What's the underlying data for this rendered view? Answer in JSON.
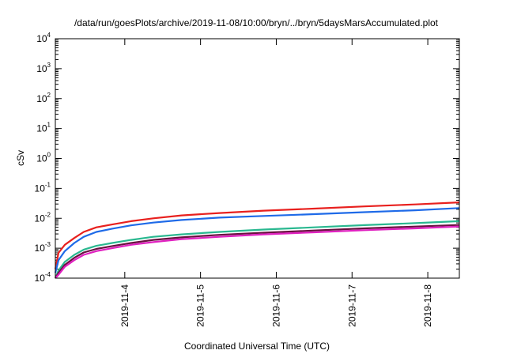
{
  "chart_data": {
    "type": "line",
    "title": "/data/run/goesPlots/archive/2019-11-08/10:00/bryn/../bryn/5daysMarsAccumulated.plot",
    "xlabel": "Coordinated Universal Time (UTC)",
    "ylabel": "cSv",
    "yscale": "log",
    "ylim": [
      0.0001,
      10000
    ],
    "y_ticks": [
      {
        "value": 0.0001,
        "base": "10",
        "exp": "-4"
      },
      {
        "value": 0.001,
        "base": "10",
        "exp": "-3"
      },
      {
        "value": 0.01,
        "base": "10",
        "exp": "-2"
      },
      {
        "value": 0.1,
        "base": "10",
        "exp": "-1"
      },
      {
        "value": 1,
        "base": "10",
        "exp": "0"
      },
      {
        "value": 10,
        "base": "10",
        "exp": "1"
      },
      {
        "value": 100,
        "base": "10",
        "exp": "2"
      },
      {
        "value": 1000,
        "base": "10",
        "exp": "3"
      },
      {
        "value": 10000,
        "base": "10",
        "exp": "4"
      }
    ],
    "xlim": [
      "2019-11-03 02:00",
      "2019-11-08 10:00"
    ],
    "x_ticks": [
      {
        "value": "2019-11-04 00:00",
        "label": "2019-11-4"
      },
      {
        "value": "2019-11-05 00:00",
        "label": "2019-11-5"
      },
      {
        "value": "2019-11-06 00:00",
        "label": "2019-11-6"
      },
      {
        "value": "2019-11-07 00:00",
        "label": "2019-11-7"
      },
      {
        "value": "2019-11-08 00:00",
        "label": "2019-11-8"
      }
    ],
    "grid": false,
    "series": [
      {
        "color": "#e8201e",
        "x": [
          "2019-11-03 02:00",
          "2019-11-03 03:00",
          "2019-11-03 05:00",
          "2019-11-03 08:00",
          "2019-11-03 11:00",
          "2019-11-03 15:00",
          "2019-11-03 20:00",
          "2019-11-04 02:00",
          "2019-11-04 09:00",
          "2019-11-04 18:00",
          "2019-11-05 06:00",
          "2019-11-05 20:00",
          "2019-11-06 12:00",
          "2019-11-07 04:00",
          "2019-11-07 20:00",
          "2019-11-08 10:00"
        ],
        "values": [
          0.0002,
          0.0007,
          0.0013,
          0.0022,
          0.0035,
          0.005,
          0.0062,
          0.008,
          0.01,
          0.0125,
          0.015,
          0.018,
          0.021,
          0.025,
          0.029,
          0.034
        ]
      },
      {
        "color": "#1e6ae8",
        "x": [
          "2019-11-03 02:00",
          "2019-11-03 03:00",
          "2019-11-03 05:00",
          "2019-11-03 08:00",
          "2019-11-03 11:00",
          "2019-11-03 15:00",
          "2019-11-03 20:00",
          "2019-11-04 02:00",
          "2019-11-04 09:00",
          "2019-11-04 18:00",
          "2019-11-05 06:00",
          "2019-11-05 20:00",
          "2019-11-06 12:00",
          "2019-11-07 04:00",
          "2019-11-07 20:00",
          "2019-11-08 10:00"
        ],
        "values": [
          0.00015,
          0.0004,
          0.0008,
          0.0015,
          0.0024,
          0.0035,
          0.0045,
          0.0058,
          0.0072,
          0.0088,
          0.0105,
          0.012,
          0.0138,
          0.016,
          0.0185,
          0.022
        ]
      },
      {
        "color": "#2ab890",
        "x": [
          "2019-11-03 02:00",
          "2019-11-03 03:00",
          "2019-11-03 05:00",
          "2019-11-03 08:00",
          "2019-11-03 11:00",
          "2019-11-03 15:00",
          "2019-11-03 20:00",
          "2019-11-04 02:00",
          "2019-11-04 09:00",
          "2019-11-04 18:00",
          "2019-11-05 06:00",
          "2019-11-05 20:00",
          "2019-11-06 12:00",
          "2019-11-07 04:00",
          "2019-11-07 20:00",
          "2019-11-08 10:00"
        ],
        "values": [
          0.0001,
          0.00018,
          0.00035,
          0.0006,
          0.0009,
          0.0012,
          0.0015,
          0.0019,
          0.0024,
          0.0029,
          0.0035,
          0.0042,
          0.005,
          0.0059,
          0.0069,
          0.008
        ]
      },
      {
        "color": "#6a1040",
        "x": [
          "2019-11-03 02:00",
          "2019-11-03 03:00",
          "2019-11-03 05:00",
          "2019-11-03 08:00",
          "2019-11-03 11:00",
          "2019-11-03 15:00",
          "2019-11-03 20:00",
          "2019-11-04 02:00",
          "2019-11-04 09:00",
          "2019-11-04 18:00",
          "2019-11-05 06:00",
          "2019-11-05 20:00",
          "2019-11-06 12:00",
          "2019-11-07 04:00",
          "2019-11-07 20:00",
          "2019-11-08 10:00"
        ],
        "values": [
          0.0001,
          0.00015,
          0.00028,
          0.00048,
          0.00072,
          0.00095,
          0.00118,
          0.0015,
          0.0019,
          0.0023,
          0.0028,
          0.0033,
          0.0039,
          0.0046,
          0.0053,
          0.006
        ]
      },
      {
        "color": "#e020c0",
        "x": [
          "2019-11-03 02:00",
          "2019-11-03 03:00",
          "2019-11-03 05:00",
          "2019-11-03 08:00",
          "2019-11-03 11:00",
          "2019-11-03 15:00",
          "2019-11-03 20:00",
          "2019-11-04 02:00",
          "2019-11-04 09:00",
          "2019-11-04 18:00",
          "2019-11-05 06:00",
          "2019-11-05 20:00",
          "2019-11-06 12:00",
          "2019-11-07 04:00",
          "2019-11-07 20:00",
          "2019-11-08 10:00"
        ],
        "values": [
          0.0001,
          0.00013,
          0.00024,
          0.0004,
          0.0006,
          0.0008,
          0.001,
          0.0013,
          0.0016,
          0.002,
          0.0024,
          0.0029,
          0.0034,
          0.004,
          0.0046,
          0.0053
        ]
      }
    ]
  }
}
